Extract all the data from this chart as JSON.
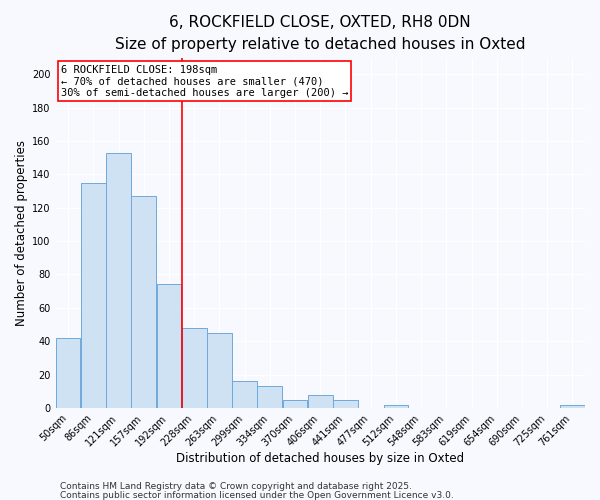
{
  "title": "6, ROCKFIELD CLOSE, OXTED, RH8 0DN",
  "subtitle": "Size of property relative to detached houses in Oxted",
  "xlabel": "Distribution of detached houses by size in Oxted",
  "ylabel": "Number of detached properties",
  "bar_labels": [
    "50sqm",
    "86sqm",
    "121sqm",
    "157sqm",
    "192sqm",
    "228sqm",
    "263sqm",
    "299sqm",
    "334sqm",
    "370sqm",
    "406sqm",
    "441sqm",
    "477sqm",
    "512sqm",
    "548sqm",
    "583sqm",
    "619sqm",
    "654sqm",
    "690sqm",
    "725sqm",
    "761sqm"
  ],
  "bar_values": [
    42,
    135,
    153,
    127,
    74,
    48,
    45,
    16,
    13,
    5,
    8,
    5,
    0,
    2,
    0,
    0,
    0,
    0,
    0,
    0,
    2
  ],
  "bar_color": "#cfe2f3",
  "bar_edge_color": "#6fa8dc",
  "vline_bar_index": 4,
  "vline_color": "red",
  "vline_linewidth": 1.2,
  "annotation_title": "6 ROCKFIELD CLOSE: 198sqm",
  "annotation_line1": "← 70% of detached houses are smaller (470)",
  "annotation_line2": "30% of semi-detached houses are larger (200) →",
  "ylim": [
    0,
    210
  ],
  "yticks": [
    0,
    20,
    40,
    60,
    80,
    100,
    120,
    140,
    160,
    180,
    200
  ],
  "footer1": "Contains HM Land Registry data © Crown copyright and database right 2025.",
  "footer2": "Contains public sector information licensed under the Open Government Licence v3.0.",
  "background_color": "#f7f9ff",
  "grid_color": "#e8eaf6",
  "title_fontsize": 11,
  "subtitle_fontsize": 9,
  "axis_label_fontsize": 8.5,
  "tick_fontsize": 7,
  "annotation_fontsize": 7.5,
  "footer_fontsize": 6.5
}
